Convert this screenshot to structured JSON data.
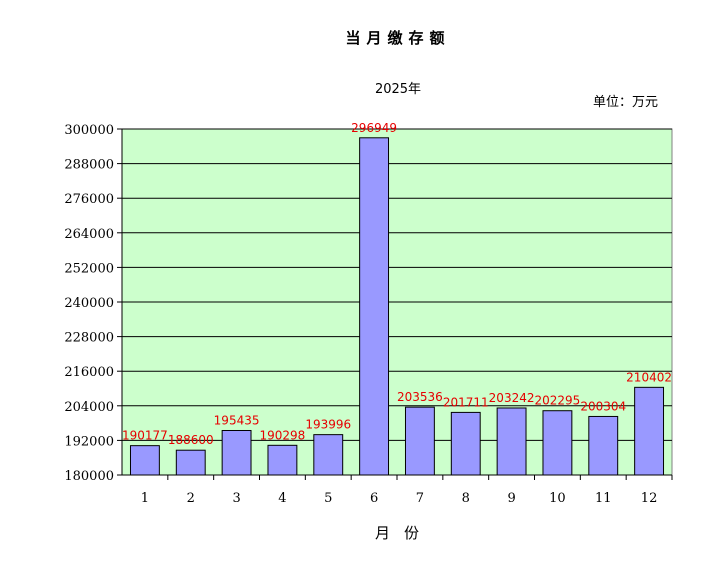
{
  "chart_data": {
    "type": "bar",
    "title": "当月缴存额",
    "subtitle": "2025年",
    "unit_label": "单位：万元",
    "xlabel": "月份",
    "ylabel": "",
    "categories": [
      "1",
      "2",
      "3",
      "4",
      "5",
      "6",
      "7",
      "8",
      "9",
      "10",
      "11",
      "12"
    ],
    "values": [
      190177,
      188600,
      195435,
      190298,
      193996,
      296949,
      203536,
      201711,
      203242,
      202295,
      200304,
      210402
    ],
    "data_labels": [
      "190177",
      "188600",
      "195435",
      "190298",
      "193996",
      "296949",
      "203536",
      "201711",
      "203242",
      "202295",
      "200304",
      "210402"
    ],
    "ylim": [
      180000,
      300000
    ],
    "yticks": [
      180000,
      192000,
      204000,
      216000,
      228000,
      240000,
      252000,
      264000,
      276000,
      288000,
      300000
    ],
    "grid": true,
    "legend": "none",
    "colors": {
      "plot_background": "#ccffcc",
      "bar_fill": "#9999ff",
      "bar_stroke": "#000000",
      "data_label": "#e60000",
      "gridline": "#000000"
    }
  }
}
